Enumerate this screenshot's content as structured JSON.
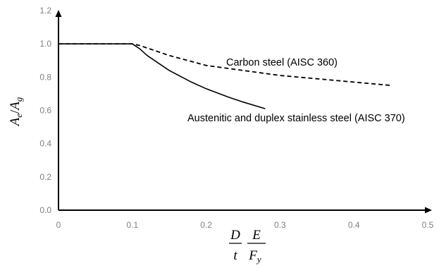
{
  "chart_data": {
    "type": "line",
    "title": "",
    "xlim": [
      0,
      0.5
    ],
    "ylim": [
      0,
      1.2
    ],
    "x_ticks": [
      "0",
      "0.1",
      "0.2",
      "0.3",
      "0.4",
      "0.5"
    ],
    "y_ticks": [
      "0.0",
      "0.2",
      "0.4",
      "0.6",
      "0.8",
      "1.0",
      "1.2"
    ],
    "grid": false,
    "ylabel": {
      "a": "A",
      "a_sub": "e",
      "slash": "/",
      "b": "A",
      "b_sub": "g"
    },
    "xlabel": {
      "num1": "D",
      "den1": "t",
      "num2": "E",
      "den2": "F",
      "den2_sub": "y"
    },
    "series": [
      {
        "name": "Carbon steel (AISC 360)",
        "style": "dashed",
        "color": "#000000",
        "points": [
          [
            0,
            1.0
          ],
          [
            0.1,
            1.0
          ],
          [
            0.11,
            0.99
          ],
          [
            0.15,
            0.93
          ],
          [
            0.2,
            0.87
          ],
          [
            0.25,
            0.84
          ],
          [
            0.3,
            0.81
          ],
          [
            0.35,
            0.79
          ],
          [
            0.4,
            0.77
          ],
          [
            0.45,
            0.75
          ]
        ]
      },
      {
        "name": "Austenitic and duplex stainless steel (AISC 370)",
        "style": "solid",
        "color": "#000000",
        "points": [
          [
            0,
            1.0
          ],
          [
            0.1,
            1.0
          ],
          [
            0.11,
            0.97
          ],
          [
            0.12,
            0.93
          ],
          [
            0.15,
            0.84
          ],
          [
            0.18,
            0.77
          ],
          [
            0.2,
            0.73
          ],
          [
            0.23,
            0.68
          ],
          [
            0.25,
            0.65
          ],
          [
            0.28,
            0.61
          ]
        ]
      }
    ]
  }
}
